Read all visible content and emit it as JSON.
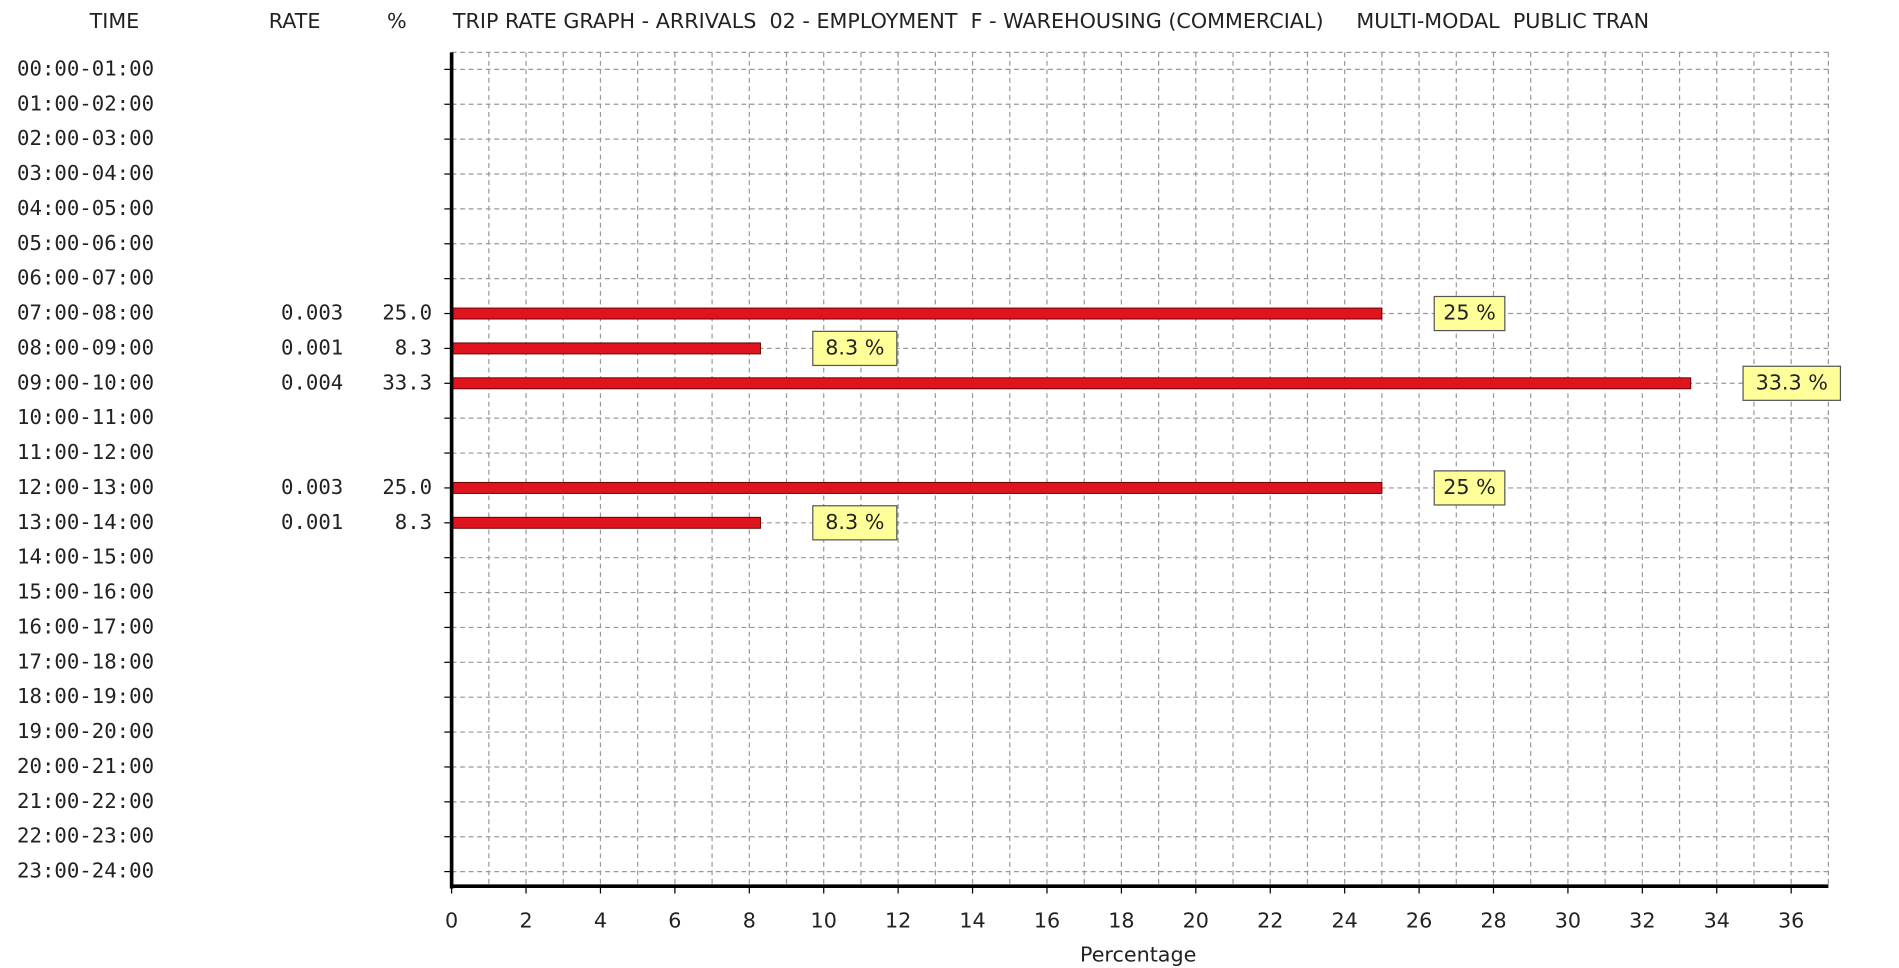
{
  "chart_data": {
    "type": "bar",
    "orientation": "horizontal",
    "title": "TRIP RATE GRAPH - ARRIVALS  02 - EMPLOYMENT  F - WAREHOUSING (COMMERCIAL)     MULTI-MODAL  PUBLIC TRAN",
    "column_headers": {
      "time": "TIME",
      "rate": "RATE",
      "percent": "%"
    },
    "x_label": "Percentage",
    "categories": [
      "00:00-01:00",
      "01:00-02:00",
      "02:00-03:00",
      "03:00-04:00",
      "04:00-05:00",
      "05:00-06:00",
      "06:00-07:00",
      "07:00-08:00",
      "08:00-09:00",
      "09:00-10:00",
      "10:00-11:00",
      "11:00-12:00",
      "12:00-13:00",
      "13:00-14:00",
      "14:00-15:00",
      "15:00-16:00",
      "16:00-17:00",
      "17:00-18:00",
      "18:00-19:00",
      "19:00-20:00",
      "20:00-21:00",
      "21:00-22:00",
      "22:00-23:00",
      "23:00-24:00"
    ],
    "rates": [
      null,
      null,
      null,
      null,
      null,
      null,
      null,
      0.003,
      0.001,
      0.004,
      null,
      null,
      0.003,
      0.001,
      null,
      null,
      null,
      null,
      null,
      null,
      null,
      null,
      null,
      null
    ],
    "percent_column": [
      null,
      null,
      null,
      null,
      null,
      null,
      null,
      "25.0",
      "8.3",
      "33.3",
      null,
      null,
      "25.0",
      "8.3",
      null,
      null,
      null,
      null,
      null,
      null,
      null,
      null,
      null,
      null
    ],
    "values": [
      null,
      null,
      null,
      null,
      null,
      null,
      null,
      25,
      8.3,
      33.3,
      null,
      null,
      25,
      8.3,
      null,
      null,
      null,
      null,
      null,
      null,
      null,
      null,
      null,
      null
    ],
    "value_labels": [
      null,
      null,
      null,
      null,
      null,
      null,
      null,
      "25 %",
      "8.3 %",
      "33.3 %",
      null,
      null,
      "25 %",
      "8.3 %",
      null,
      null,
      null,
      null,
      null,
      null,
      null,
      null,
      null,
      null
    ],
    "color": "#e0141e",
    "label_color": "#ffff99",
    "xlim": [
      0,
      37
    ],
    "xticks": [
      0,
      2,
      4,
      6,
      8,
      10,
      12,
      14,
      16,
      18,
      20,
      22,
      24,
      26,
      28,
      30,
      32,
      34,
      36
    ],
    "x_minor_ticks": [
      1,
      3,
      5,
      7,
      9,
      11,
      13,
      15,
      17,
      19,
      21,
      23,
      25,
      27,
      29,
      31,
      33,
      35
    ],
    "grid": true
  }
}
